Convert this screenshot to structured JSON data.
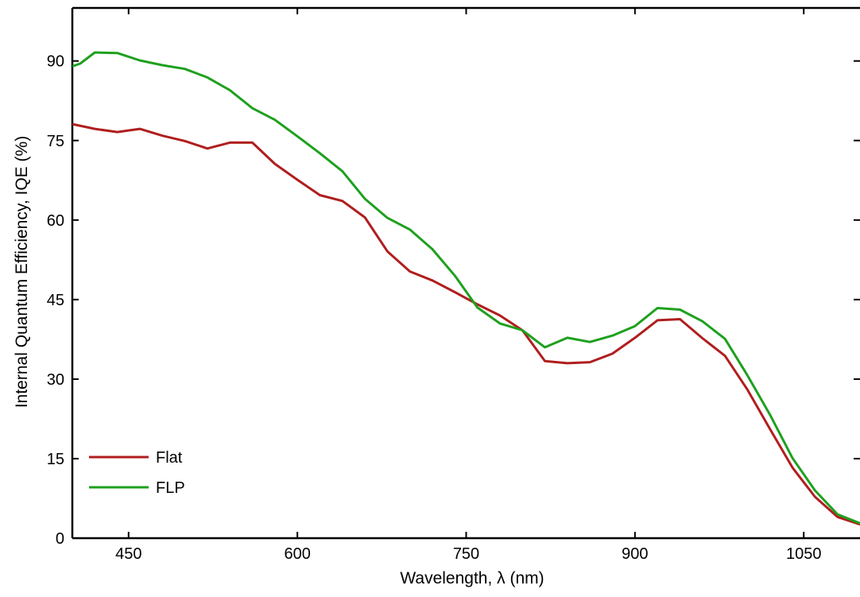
{
  "chart_data": {
    "type": "line",
    "title": "",
    "xlabel": "Wavelength, λ (nm)",
    "ylabel": "Internal Quantum Efficiency, IQE (%)",
    "xlim": [
      400,
      1100
    ],
    "ylim": [
      0,
      100
    ],
    "xticks": [
      450,
      600,
      750,
      900,
      1050
    ],
    "yticks": [
      0,
      15,
      30,
      45,
      60,
      75,
      90
    ],
    "grid": false,
    "legend_position": "bottom-left",
    "series": [
      {
        "name": "Flat",
        "color": "#b01e1e",
        "x": [
          400,
          420,
          440,
          460,
          480,
          500,
          520,
          540,
          560,
          580,
          600,
          620,
          640,
          660,
          680,
          700,
          720,
          740,
          760,
          780,
          800,
          820,
          840,
          860,
          880,
          900,
          920,
          940,
          960,
          980,
          1000,
          1020,
          1040,
          1060,
          1080,
          1100
        ],
        "values": [
          78.1,
          77.2,
          76.6,
          77.2,
          75.9,
          74.9,
          73.5,
          74.6,
          74.6,
          70.6,
          67.6,
          64.7,
          63.6,
          60.5,
          54.1,
          50.3,
          48.6,
          46.4,
          44.1,
          42.0,
          39.2,
          33.4,
          33.0,
          33.2,
          34.8,
          37.8,
          41.1,
          41.3,
          37.7,
          34.4,
          28.0,
          20.6,
          13.3,
          7.8,
          4.0,
          2.6
        ]
      },
      {
        "name": "FLP",
        "color": "#1ea01e",
        "x": [
          400,
          407,
          420,
          440,
          460,
          480,
          500,
          520,
          540,
          560,
          580,
          600,
          620,
          640,
          660,
          680,
          700,
          720,
          740,
          760,
          780,
          800,
          820,
          840,
          860,
          880,
          900,
          920,
          940,
          960,
          980,
          1000,
          1020,
          1040,
          1060,
          1080,
          1100
        ],
        "values": [
          89.0,
          89.5,
          91.6,
          91.5,
          90.1,
          89.2,
          88.5,
          86.9,
          84.5,
          81.1,
          78.9,
          75.8,
          72.6,
          69.2,
          64.0,
          60.4,
          58.2,
          54.5,
          49.5,
          43.5,
          40.5,
          39.2,
          36.0,
          37.8,
          37.0,
          38.2,
          40.0,
          43.4,
          43.1,
          40.9,
          37.6,
          30.7,
          23.3,
          15.1,
          9.0,
          4.5,
          2.8
        ]
      }
    ]
  }
}
